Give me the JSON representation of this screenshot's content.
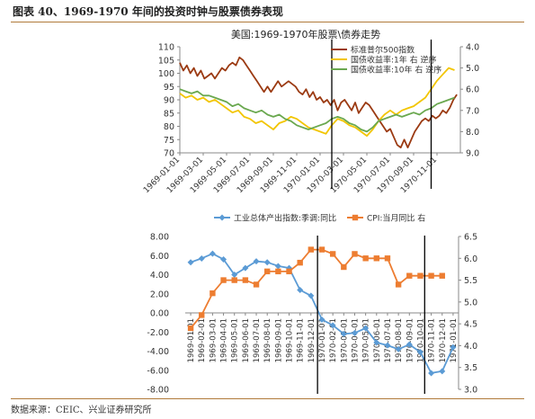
{
  "header": {
    "figure_title": "图表 40、1969-1970 年间的投资时钟与股票债券表现"
  },
  "footer": {
    "source": "数据来源：CEIC、兴业证券研究所"
  },
  "colors": {
    "sp500": "#9b3a12",
    "bond1y": "#f2c500",
    "bond10y": "#6aa84f",
    "ip": "#5b9bd5",
    "cpi": "#ed7d31",
    "marker": "#000000"
  },
  "chart_data": [
    {
      "type": "line",
      "title": "美国:1969-1970年股票\\债券走势",
      "x_tick_labels": [
        "1969-01-01",
        "1969-03-01",
        "1969-05-01",
        "1969-07-01",
        "1969-09-01",
        "1969-11-01",
        "1970-01-01",
        "1970-03-01",
        "1970-05-01",
        "1970-07-01",
        "1970-09-01",
        "1970-11-01"
      ],
      "ylim_left": [
        70,
        110
      ],
      "yticks_left": [
        70,
        75,
        80,
        85,
        90,
        95,
        100,
        105,
        110
      ],
      "ylim_right": [
        9.0,
        4.0
      ],
      "yticks_right": [
        "4.0",
        "5.0",
        "6.0",
        "7.0",
        "8.0",
        "9.0"
      ],
      "right_axis_inverted": true,
      "grid": false,
      "legend_position": "top-right",
      "series": [
        {
          "name": "标准普尔500指数",
          "axis": "left",
          "color_key": "sp500",
          "x": [
            0,
            0.3,
            0.6,
            0.9,
            1.2,
            1.5,
            1.8,
            2.1,
            2.4,
            2.7,
            3.0,
            3.3,
            3.6,
            3.9,
            4.2,
            4.5,
            4.8,
            5.1,
            5.4,
            5.7,
            6.0,
            6.3,
            6.6,
            6.9,
            7.2,
            7.5,
            7.8,
            8.1,
            8.4,
            8.7,
            9.0,
            9.3,
            9.6,
            9.9,
            10.2,
            10.5,
            10.8,
            11.1,
            11.4,
            11.7,
            12.0,
            12.3,
            12.6,
            12.9,
            13.2,
            13.5,
            13.8,
            14.1,
            14.4,
            14.7,
            15.0,
            15.3,
            15.6,
            15.9,
            16.2,
            16.5,
            16.8,
            17.1,
            17.4,
            17.7,
            18.0,
            18.3,
            18.6,
            18.9,
            19.2,
            19.5,
            19.8,
            20.1,
            20.4,
            20.7,
            21.0,
            21.3,
            21.6,
            21.9,
            22.2,
            22.5,
            22.8,
            23.1,
            23.4,
            23.7
          ],
          "values": [
            104,
            101,
            103,
            100,
            102,
            99,
            101,
            98,
            99,
            100,
            98,
            100,
            102,
            101,
            103,
            104,
            103,
            106,
            105,
            103,
            101,
            99,
            97,
            95,
            93,
            95,
            93,
            95,
            97,
            95,
            96,
            97,
            96,
            95,
            93,
            92,
            94,
            91,
            93,
            90,
            91,
            89,
            90,
            88,
            90,
            86,
            89,
            90,
            88,
            86,
            89,
            85,
            87,
            89,
            88,
            86,
            84,
            82,
            80,
            78,
            79,
            76,
            73,
            72,
            75,
            72,
            75,
            78,
            80,
            82,
            83,
            82,
            84,
            83,
            84,
            86,
            85,
            87,
            90,
            92
          ]
        },
        {
          "name": "国债收益率:1年 右 逆序",
          "axis": "right",
          "color_key": "bond1y",
          "x": [
            0,
            0.5,
            1,
            1.5,
            2,
            2.5,
            3,
            3.5,
            4,
            4.5,
            5,
            5.5,
            6,
            6.5,
            7,
            7.5,
            8,
            8.5,
            9,
            9.5,
            10,
            10.5,
            11,
            11.5,
            12,
            12.5,
            13,
            13.5,
            14,
            14.5,
            15,
            15.5,
            16,
            16.5,
            17,
            17.5,
            18,
            18.5,
            19,
            19.5,
            20,
            20.5,
            21,
            21.5,
            22,
            22.5,
            23,
            23.5
          ],
          "values": [
            6.2,
            6.4,
            6.3,
            6.5,
            6.4,
            6.6,
            6.5,
            6.7,
            6.9,
            7.1,
            7.0,
            7.3,
            7.4,
            7.6,
            7.5,
            7.7,
            7.9,
            7.6,
            7.5,
            7.3,
            7.4,
            7.6,
            7.8,
            7.9,
            8.0,
            8.1,
            7.7,
            7.4,
            7.5,
            7.7,
            7.8,
            8.0,
            8.2,
            7.9,
            7.5,
            7.2,
            7.0,
            7.2,
            7.0,
            6.9,
            6.8,
            6.6,
            6.4,
            6.0,
            5.6,
            5.3,
            5.0,
            5.1
          ]
        },
        {
          "name": "国债收益率:10年 右 逆序",
          "axis": "right",
          "color_key": "bond10y",
          "x": [
            0,
            0.5,
            1,
            1.5,
            2,
            2.5,
            3,
            3.5,
            4,
            4.5,
            5,
            5.5,
            6,
            6.5,
            7,
            7.5,
            8,
            8.5,
            9,
            9.5,
            10,
            10.5,
            11,
            11.5,
            12,
            12.5,
            13,
            13.5,
            14,
            14.5,
            15,
            15.5,
            16,
            16.5,
            17,
            17.5,
            18,
            18.5,
            19,
            19.5,
            20,
            20.5,
            21,
            21.5,
            22,
            22.5,
            23,
            23.5
          ],
          "values": [
            6.0,
            6.1,
            6.2,
            6.1,
            6.3,
            6.3,
            6.4,
            6.5,
            6.6,
            6.8,
            6.7,
            6.9,
            7.0,
            7.1,
            7.0,
            7.2,
            7.3,
            7.2,
            7.4,
            7.5,
            7.7,
            7.8,
            7.9,
            7.8,
            7.7,
            7.6,
            7.4,
            7.3,
            7.4,
            7.6,
            7.7,
            7.9,
            8.0,
            7.8,
            7.5,
            7.4,
            7.3,
            7.2,
            7.3,
            7.2,
            7.1,
            7.2,
            7.0,
            6.9,
            6.7,
            6.6,
            6.5,
            6.4
          ]
        }
      ],
      "phase_markers_x": [
        13.0,
        21.5
      ]
    },
    {
      "type": "line",
      "series_display": "line+markers",
      "categories": [
        "1969-01-01",
        "1969-02-01",
        "1969-03-01",
        "1969-04-01",
        "1969-05-01",
        "1969-06-01",
        "1969-07-01",
        "1969-08-01",
        "1969-09-01",
        "1969-10-01",
        "1969-11-01",
        "1969-12-01",
        "1970-01-01",
        "1970-02-01",
        "1970-03-01",
        "1970-04-01",
        "1970-05-01",
        "1970-06-01",
        "1970-07-01",
        "1970-08-01",
        "1970-09-01",
        "1970-10-01",
        "1970-11-01",
        "1970-12-01",
        "1971-01-01"
      ],
      "ylim_left": [
        -8.0,
        8.0
      ],
      "yticks_left": [
        "8.00",
        "6.00",
        "4.00",
        "2.00",
        "0.00",
        "-2.00",
        "-4.00",
        "-6.00",
        "-8.00"
      ],
      "ylim_right": [
        3.0,
        6.5
      ],
      "yticks_right": [
        "6.5",
        "6.0",
        "5.5",
        "5.0",
        "4.5",
        "4.0",
        "3.5",
        "3.0"
      ],
      "legend_position": "top",
      "series": [
        {
          "name": "工业总体产出指数:季调:同比",
          "axis": "left",
          "color_key": "ip",
          "values": [
            5.3,
            5.7,
            6.2,
            5.6,
            4.0,
            4.7,
            5.4,
            5.3,
            4.9,
            4.7,
            2.4,
            1.8,
            -0.7,
            -1.3,
            -2.2,
            -2.1,
            -1.6,
            -3.1,
            -3.4,
            -3.8,
            -3.3,
            -4.1,
            -6.3,
            -6.1,
            -3.6
          ]
        },
        {
          "name": "CPI:当月同比 右",
          "axis": "right",
          "color_key": "cpi",
          "values": [
            4.4,
            4.7,
            5.2,
            5.5,
            5.5,
            5.5,
            5.4,
            5.7,
            5.7,
            5.7,
            5.9,
            6.2,
            6.2,
            6.1,
            5.8,
            6.1,
            6.0,
            6.0,
            6.0,
            5.4,
            5.6,
            5.6,
            5.6,
            5.6,
            null
          ]
        }
      ],
      "phase_markers_x": [
        11.6,
        21.4
      ]
    }
  ]
}
